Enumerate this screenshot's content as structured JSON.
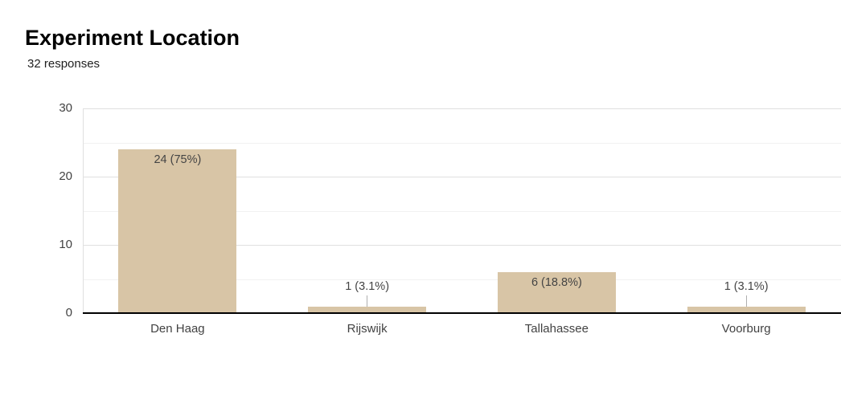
{
  "header": {
    "title": "Experiment Location",
    "subtitle": "32 responses"
  },
  "chart_data": {
    "type": "bar",
    "title": "Experiment Location",
    "subtitle": "32 responses",
    "categories": [
      "Den Haag",
      "Rijswijk",
      "Tallahassee",
      "Voorburg"
    ],
    "values": [
      24,
      1,
      6,
      1
    ],
    "value_labels": [
      "24 (75%)",
      "1 (3.1%)",
      "6 (18.8%)",
      "1 (3.1%)"
    ],
    "xlabel": "",
    "ylabel": "",
    "ylim": [
      0,
      30
    ],
    "yticks": [
      0,
      10,
      20,
      30
    ],
    "minor_yticks": [
      5,
      15,
      25
    ],
    "grid": true,
    "legend_position": "none",
    "colors": {
      "bar": "#D8C5A6",
      "annotation_text": "#444444",
      "axis_text": "#424242",
      "major_gridline": "#E0E0E0",
      "minor_gridline": "#F1F1F1",
      "baseline": "#000000",
      "stem": "#AFAFAF",
      "title_text": "#000000",
      "subtitle_text": "#212121"
    }
  }
}
